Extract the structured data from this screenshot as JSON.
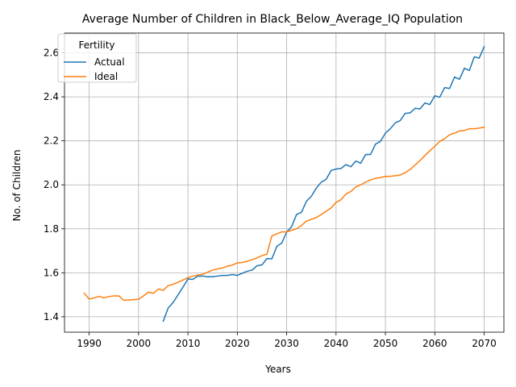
{
  "chart_data": {
    "type": "line",
    "title": "Average Number of Children in Black_Below_Average_IQ Population",
    "xlabel": "Years",
    "ylabel": "No. of Children",
    "xlim": [
      1985,
      2074
    ],
    "ylim": [
      1.33,
      2.69
    ],
    "xticks": [
      1990,
      2000,
      2010,
      2020,
      2030,
      2040,
      2050,
      2060,
      2070
    ],
    "yticks": [
      1.4,
      1.6,
      1.8,
      2.0,
      2.2,
      2.4,
      2.6
    ],
    "grid": true,
    "legend": {
      "title": "Fertility",
      "placement": "top-left"
    },
    "series": [
      {
        "name": "Actual",
        "color": "#1f77b4",
        "x": [
          2005,
          2006,
          2007,
          2008,
          2009,
          2010,
          2011,
          2012,
          2013,
          2014,
          2015,
          2016,
          2017,
          2018,
          2019,
          2020,
          2021,
          2022,
          2023,
          2024,
          2025,
          2026,
          2027,
          2028,
          2029,
          2030,
          2031,
          2032,
          2033,
          2034,
          2035,
          2036,
          2037,
          2038,
          2039,
          2040,
          2041,
          2042,
          2043,
          2044,
          2045,
          2046,
          2047,
          2048,
          2049,
          2050,
          2051,
          2052,
          2053,
          2054,
          2055,
          2056,
          2057,
          2058,
          2059,
          2060,
          2061,
          2062,
          2063,
          2064,
          2065,
          2066,
          2067,
          2068,
          2069,
          2070
        ],
        "y": [
          1.38,
          1.44,
          1.465,
          1.5,
          1.535,
          1.572,
          1.57,
          1.585,
          1.585,
          1.582,
          1.582,
          1.585,
          1.588,
          1.588,
          1.592,
          1.588,
          1.598,
          1.607,
          1.612,
          1.632,
          1.636,
          1.665,
          1.663,
          1.72,
          1.735,
          1.785,
          1.81,
          1.865,
          1.875,
          1.925,
          1.948,
          1.985,
          2.012,
          2.025,
          2.065,
          2.072,
          2.074,
          2.092,
          2.082,
          2.108,
          2.098,
          2.138,
          2.138,
          2.185,
          2.198,
          2.235,
          2.255,
          2.282,
          2.292,
          2.325,
          2.327,
          2.348,
          2.345,
          2.372,
          2.365,
          2.405,
          2.398,
          2.442,
          2.438,
          2.49,
          2.48,
          2.53,
          2.52,
          2.582,
          2.576,
          2.628
        ]
      },
      {
        "name": "Ideal",
        "color": "#ff7f0e",
        "x": [
          1989,
          1990,
          1991,
          1992,
          1993,
          1994,
          1995,
          1996,
          1997,
          1998,
          1999,
          2000,
          2001,
          2002,
          2003,
          2004,
          2005,
          2006,
          2007,
          2008,
          2009,
          2010,
          2011,
          2012,
          2013,
          2014,
          2015,
          2016,
          2017,
          2018,
          2019,
          2020,
          2021,
          2022,
          2023,
          2024,
          2025,
          2026,
          2027,
          2028,
          2029,
          2030,
          2031,
          2032,
          2033,
          2034,
          2035,
          2036,
          2037,
          2038,
          2039,
          2040,
          2041,
          2042,
          2043,
          2044,
          2045,
          2046,
          2047,
          2048,
          2049,
          2050,
          2051,
          2052,
          2053,
          2054,
          2055,
          2056,
          2057,
          2058,
          2059,
          2060,
          2061,
          2062,
          2063,
          2064,
          2065,
          2066,
          2067,
          2068,
          2069,
          2070
        ],
        "y": [
          1.507,
          1.48,
          1.486,
          1.493,
          1.486,
          1.492,
          1.495,
          1.495,
          1.475,
          1.476,
          1.478,
          1.48,
          1.495,
          1.512,
          1.507,
          1.526,
          1.52,
          1.542,
          1.548,
          1.557,
          1.567,
          1.578,
          1.585,
          1.59,
          1.593,
          1.603,
          1.612,
          1.618,
          1.622,
          1.63,
          1.635,
          1.645,
          1.647,
          1.652,
          1.66,
          1.668,
          1.678,
          1.685,
          1.768,
          1.777,
          1.786,
          1.786,
          1.793,
          1.8,
          1.815,
          1.835,
          1.843,
          1.851,
          1.865,
          1.88,
          1.895,
          1.92,
          1.932,
          1.958,
          1.97,
          1.99,
          2.0,
          2.012,
          2.022,
          2.03,
          2.033,
          2.038,
          2.039,
          2.041,
          2.045,
          2.055,
          2.07,
          2.09,
          2.11,
          2.133,
          2.155,
          2.175,
          2.197,
          2.21,
          2.228,
          2.235,
          2.245,
          2.247,
          2.255,
          2.255,
          2.258,
          2.262
        ]
      }
    ]
  }
}
